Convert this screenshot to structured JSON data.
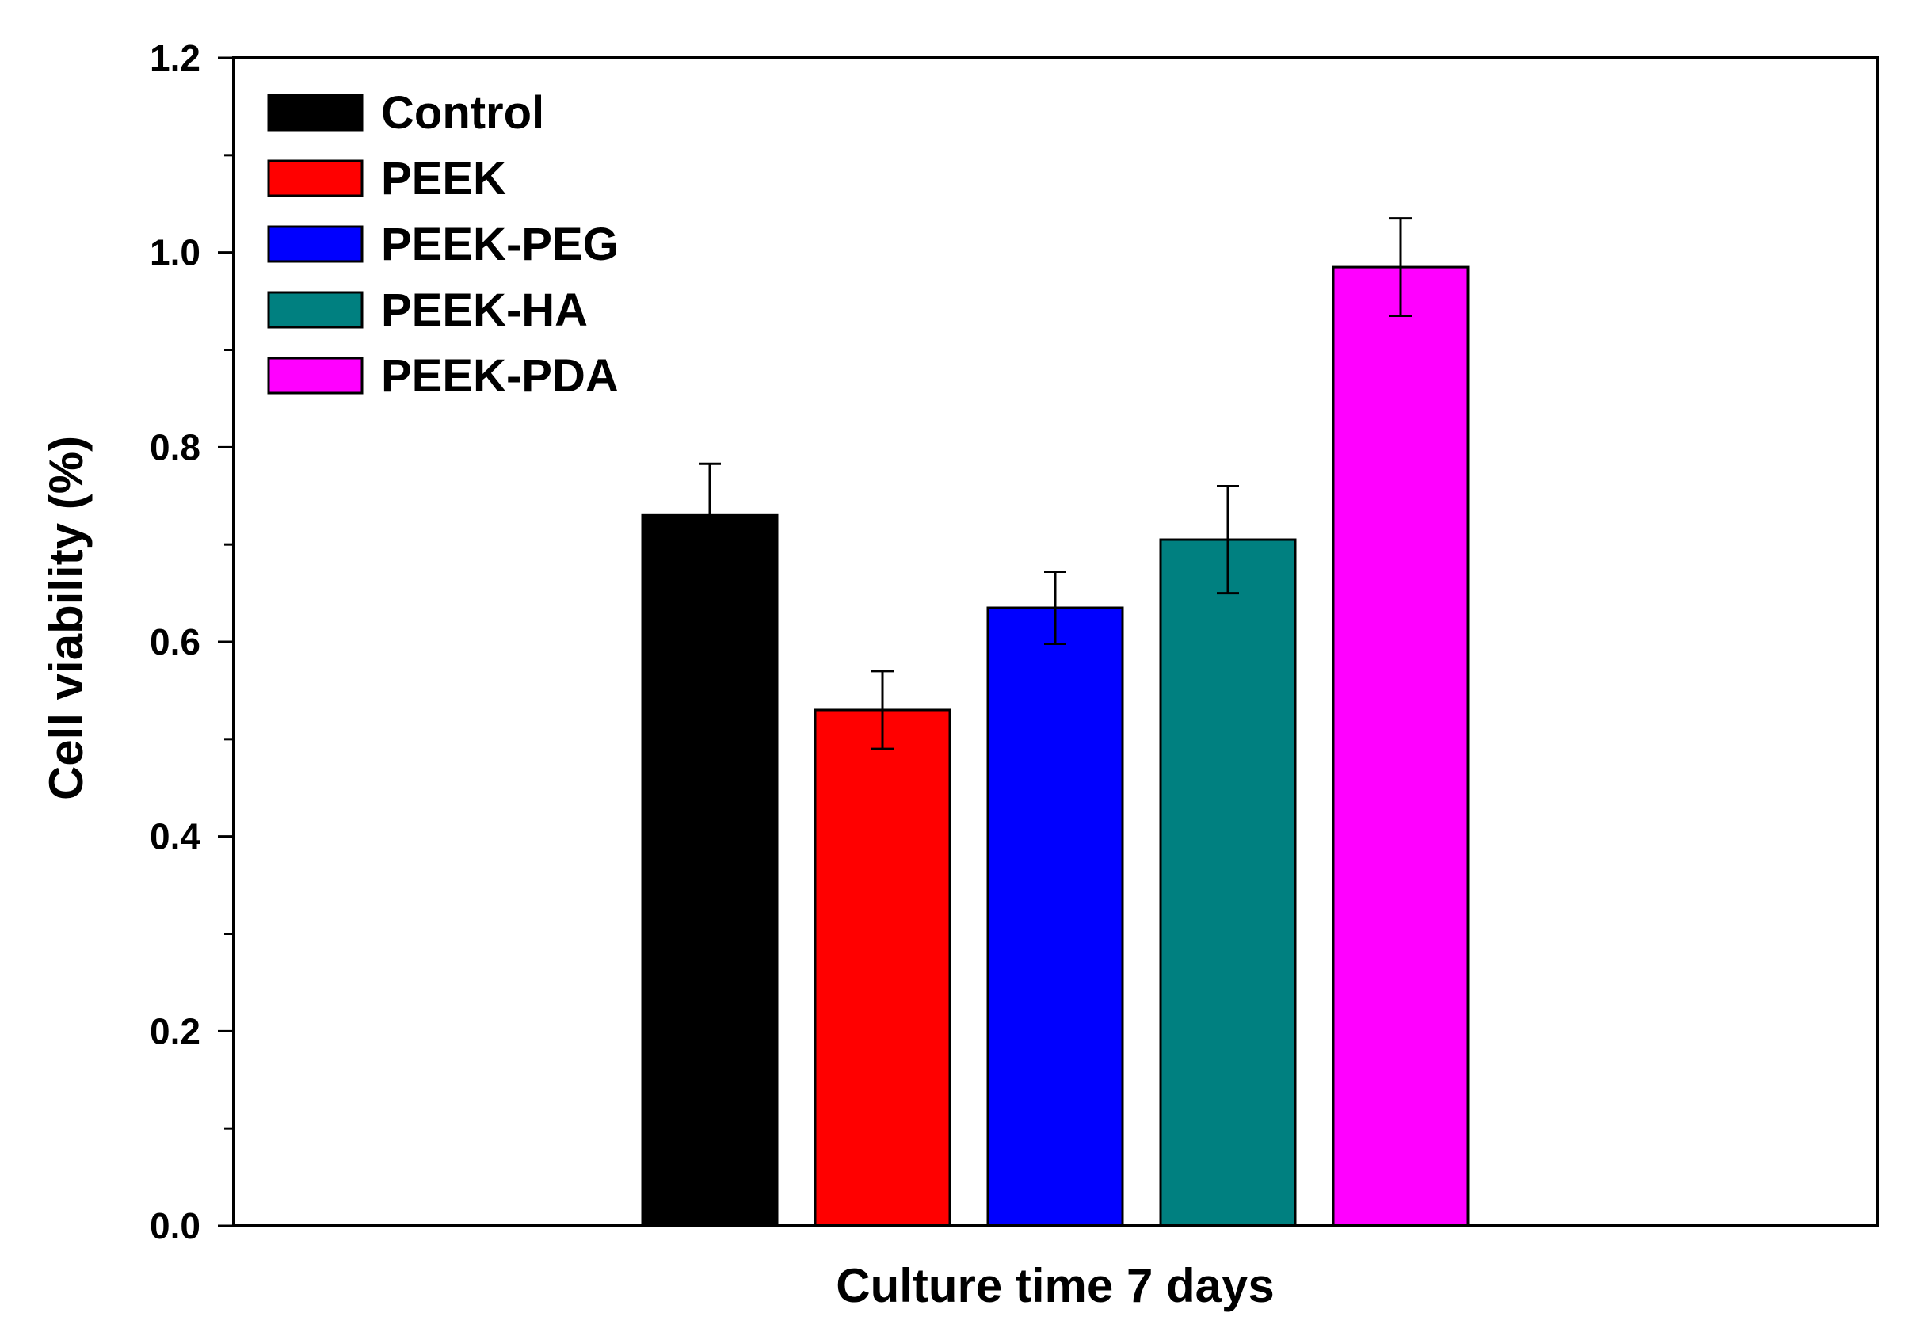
{
  "chart_data": {
    "type": "bar",
    "title": "",
    "xlabel": "Culture time 7 days",
    "ylabel": "Cell viability (%)",
    "ylim": [
      0,
      1.2
    ],
    "yticks": [
      "0.0",
      "0.2",
      "0.4",
      "0.6",
      "0.8",
      "1.0",
      "1.2"
    ],
    "legend_position": "top-left",
    "categories": [
      "Culture time 7 days"
    ],
    "series": [
      {
        "name": "Control",
        "values": [
          0.73
        ],
        "error": [
          0.053
        ],
        "color": "#000000"
      },
      {
        "name": "PEEK",
        "values": [
          0.53
        ],
        "error": [
          0.04
        ],
        "color": "#ff0000"
      },
      {
        "name": "PEEK-PEG",
        "values": [
          0.635
        ],
        "error": [
          0.037
        ],
        "color": "#0000ff"
      },
      {
        "name": "PEEK-HA",
        "values": [
          0.705
        ],
        "error": [
          0.055
        ],
        "color": "#008080"
      },
      {
        "name": "PEEK-PDA",
        "values": [
          0.985
        ],
        "error": [
          0.05
        ],
        "color": "#ff00ff"
      }
    ]
  }
}
